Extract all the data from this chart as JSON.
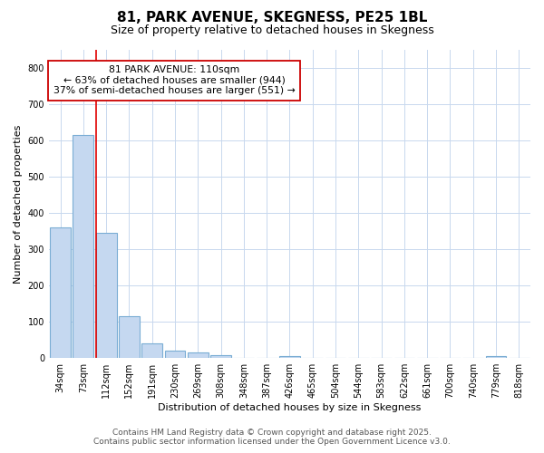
{
  "title1": "81, PARK AVENUE, SKEGNESS, PE25 1BL",
  "title2": "Size of property relative to detached houses in Skegness",
  "xlabel": "Distribution of detached houses by size in Skegness",
  "ylabel": "Number of detached properties",
  "categories": [
    "34sqm",
    "73sqm",
    "112sqm",
    "152sqm",
    "191sqm",
    "230sqm",
    "269sqm",
    "308sqm",
    "348sqm",
    "387sqm",
    "426sqm",
    "465sqm",
    "504sqm",
    "544sqm",
    "583sqm",
    "622sqm",
    "661sqm",
    "700sqm",
    "740sqm",
    "779sqm",
    "818sqm"
  ],
  "values": [
    360,
    615,
    345,
    115,
    40,
    20,
    15,
    8,
    0,
    0,
    5,
    0,
    0,
    0,
    0,
    0,
    0,
    0,
    0,
    5,
    0
  ],
  "bar_color": "#c5d8f0",
  "bar_edge_color": "#7aadd4",
  "bar_linewidth": 0.8,
  "vline_x_index": 2,
  "vline_color": "#e00000",
  "vline_linewidth": 1.2,
  "annotation_text": "81 PARK AVENUE: 110sqm\n← 63% of detached houses are smaller (944)\n37% of semi-detached houses are larger (551) →",
  "annotation_box_color": "white",
  "annotation_box_edge_color": "#cc0000",
  "annotation_fontsize": 7.8,
  "ylim": [
    0,
    850
  ],
  "yticks": [
    0,
    100,
    200,
    300,
    400,
    500,
    600,
    700,
    800
  ],
  "grid_color": "#c8d8ee",
  "background_color": "#ffffff",
  "plot_bg_color": "#ffffff",
  "footer1": "Contains HM Land Registry data © Crown copyright and database right 2025.",
  "footer2": "Contains public sector information licensed under the Open Government Licence v3.0.",
  "title_fontsize": 11,
  "subtitle_fontsize": 9,
  "axis_label_fontsize": 8,
  "tick_fontsize": 7,
  "footer_fontsize": 6.5
}
